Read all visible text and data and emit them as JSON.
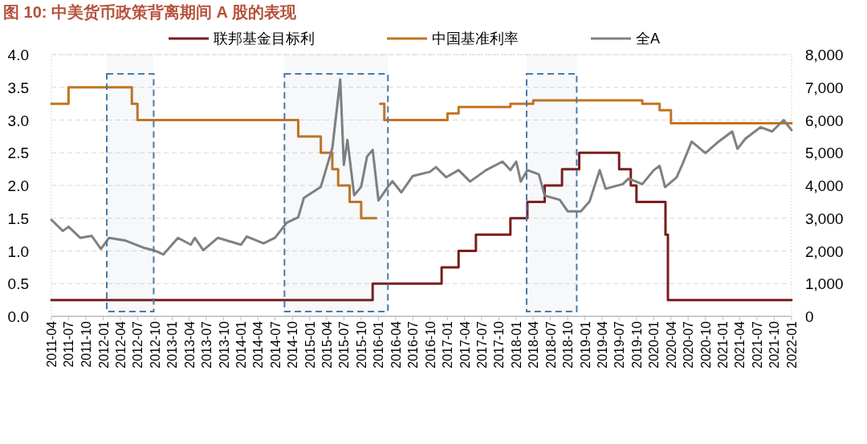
{
  "chart_data": {
    "type": "line",
    "title": "图 10:  中美货币政策背离期间 A 股的表现",
    "xlim": [
      "2011-04",
      "2022-01"
    ],
    "xticks": [
      "2011-04",
      "2011-07",
      "2011-10",
      "2012-01",
      "2012-04",
      "2012-07",
      "2012-10",
      "2013-01",
      "2013-04",
      "2013-07",
      "2013-10",
      "2014-01",
      "2014-04",
      "2014-07",
      "2014-10",
      "2015-01",
      "2015-04",
      "2015-07",
      "2015-10",
      "2016-01",
      "2016-04",
      "2016-07",
      "2016-10",
      "2017-01",
      "2017-04",
      "2017-07",
      "2017-10",
      "2018-01",
      "2018-04",
      "2018-07",
      "2018-10",
      "2019-01",
      "2019-04",
      "2019-07",
      "2019-10",
      "2020-01",
      "2020-04",
      "2020-07",
      "2020-10",
      "2021-01",
      "2021-04",
      "2021-07",
      "2021-10",
      "2022-01"
    ],
    "ylim": [
      0,
      4
    ],
    "yticks": [
      {
        "value": 0,
        "label": "0.0"
      },
      {
        "value": 0.5,
        "label": "0.5"
      },
      {
        "value": 1,
        "label": "1.0"
      },
      {
        "value": 1.5,
        "label": "1.5"
      },
      {
        "value": 2,
        "label": "2.0"
      },
      {
        "value": 2.5,
        "label": "2.5"
      },
      {
        "value": 3,
        "label": "3.0"
      },
      {
        "value": 3.5,
        "label": "3.5"
      },
      {
        "value": 4,
        "label": "4.0"
      }
    ],
    "y2lim": [
      0,
      8000
    ],
    "y2ticks": [
      0,
      {
        "value": 1000,
        "label": "1,000"
      },
      {
        "value": 2000,
        "label": "2,000"
      },
      {
        "value": 3000,
        "label": "3,000"
      },
      {
        "value": 4000,
        "label": "4,000"
      },
      {
        "value": 5000,
        "label": "5,000"
      },
      {
        "value": 6000,
        "label": "6,000"
      },
      {
        "value": 7000,
        "label": "7,000"
      },
      {
        "value": 8000,
        "label": "8,000"
      }
    ],
    "grid": "y",
    "legend": "top",
    "bands": [
      {
        "axis": "x",
        "from": "2012-01-20",
        "to": "2012-09-25",
        "color": "#4a7aa5"
      },
      {
        "axis": "x",
        "from": "2014-08-20",
        "to": "2016-02-20",
        "color": "#4a7aa5"
      },
      {
        "axis": "x",
        "from": "2018-02-25",
        "to": "2018-11-18",
        "color": "#4a7aa5"
      }
    ],
    "series": [
      {
        "name": "联邦基金目标利",
        "type": "step",
        "color": "#7b1c1c",
        "x": [
          "2011-04",
          "2015-12",
          "2016-12",
          "2017-03",
          "2017-06",
          "2017-12",
          "2018-03",
          "2018-06",
          "2018-09",
          "2018-12",
          "2019-07",
          "2019-09",
          "2019-10",
          "2020-03-03",
          "2020-03-16",
          "2022-01"
        ],
        "values": [
          0.25,
          0.5,
          0.75,
          1.0,
          1.25,
          1.5,
          1.75,
          2.0,
          2.25,
          2.5,
          2.25,
          2.0,
          1.75,
          1.25,
          0.25,
          0.25
        ]
      },
      {
        "name": "中国基准利率",
        "type": "step",
        "color": "#c47420",
        "x": [
          "2011-04",
          "2011-07",
          "2012-06",
          "2012-07",
          "2014-11",
          "2015-03",
          "2015-05",
          "2015-06",
          "2015-08",
          "2015-10",
          "2015-12-20",
          "2016-01-10",
          "2016-02",
          "2017-01",
          "2017-03",
          "2017-12",
          "2018-04",
          "2019-11",
          "2020-02",
          "2020-04",
          "2022-01"
        ],
        "values": [
          3.25,
          3.5,
          3.25,
          3.0,
          2.75,
          2.5,
          2.25,
          2.0,
          1.75,
          1.5,
          null,
          3.25,
          3.0,
          3.1,
          3.2,
          3.25,
          3.3,
          3.25,
          3.15,
          2.95,
          2.95
        ]
      },
      {
        "name": "全A",
        "type": "line",
        "axis": "y2",
        "color": "#808080",
        "x": [
          "2011-04",
          "2011-06",
          "2011-07",
          "2011-09",
          "2011-11",
          "2011-12-20",
          "2012-02",
          "2012-04-25",
          "2012-08",
          "2012-09-25",
          "2012-11-15",
          "2013-02",
          "2013-04-10",
          "2013-05",
          "2013-06-15",
          "2013-09",
          "2014-01",
          "2014-02",
          "2014-05",
          "2014-07",
          "2014-09",
          "2014-11",
          "2014-12",
          "2015-03",
          "2015-05",
          "2015-06-12",
          "2015-07",
          "2015-07-20",
          "2015-08-25",
          "2015-10",
          "2015-11",
          "2015-12",
          "2016-01",
          "2016-02-20",
          "2016-03-15",
          "2016-05",
          "2016-07",
          "2016-10",
          "2016-11",
          "2016-12-25",
          "2017-03",
          "2017-05",
          "2017-07-25",
          "2017-10-20",
          "2017-12",
          "2018-01",
          "2018-01-25",
          "2018-03",
          "2018-05",
          "2018-06",
          "2018-08-20",
          "2018-10",
          "2018-12-10",
          "2019-01-25",
          "2019-03-20",
          "2019-04-20",
          "2019-07-20",
          "2019-08-20",
          "2019-11",
          "2020-01",
          "2020-02",
          "2020-03",
          "2020-05",
          "2020-06",
          "2020-07-20",
          "2020-10",
          "2020-12",
          "2021-02-20",
          "2021-03-20",
          "2021-05",
          "2021-07-20",
          "2021-09-20",
          "2021-11-20",
          "2022-01"
        ],
        "values": [
          2950,
          2610,
          2740,
          2400,
          2460,
          2060,
          2400,
          2320,
          2100,
          2020,
          1890,
          2400,
          2190,
          2400,
          2020,
          2400,
          2190,
          2440,
          2230,
          2400,
          2860,
          3030,
          3620,
          3960,
          5140,
          7240,
          4630,
          5390,
          3700,
          3960,
          4880,
          5090,
          3540,
          3960,
          4130,
          3790,
          4290,
          4420,
          4560,
          4250,
          4470,
          4120,
          4470,
          4730,
          4470,
          4730,
          4120,
          4470,
          4340,
          3690,
          3560,
          3210,
          3210,
          3510,
          4470,
          3900,
          4040,
          4210,
          4040,
          4470,
          4600,
          3950,
          4250,
          4650,
          5340,
          4990,
          5300,
          5650,
          5120,
          5430,
          5780,
          5650,
          6000,
          5690
        ]
      }
    ]
  }
}
